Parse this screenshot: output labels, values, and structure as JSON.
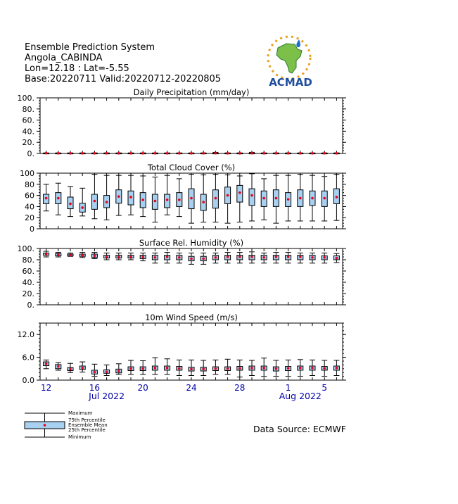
{
  "header": {
    "line1": "Ensemble Prediction System",
    "line2": "Angola_CABINDA",
    "line3": "Lon=12.18 : Lat=-5.55",
    "line4": "Base:20220711 Valid:20220712-20220805"
  },
  "logo": {
    "text": "ACMAD",
    "icon": "africa-map-sun-logo"
  },
  "source": "Data Source: ECMWF",
  "colors": {
    "box": "#a8d0f0",
    "mean": "#e8001c",
    "axis": "#000000",
    "month": "#0000aa"
  },
  "xaxis": {
    "tick_labels": [
      {
        "day": 12,
        "label": "12"
      },
      {
        "day": 16,
        "label": "16"
      },
      {
        "day": 20,
        "label": "20"
      },
      {
        "day": 24,
        "label": "24"
      },
      {
        "day": 28,
        "label": "28"
      },
      {
        "day": 32,
        "label": "1"
      },
      {
        "day": 35,
        "label": "5"
      }
    ],
    "months": [
      {
        "day": 17,
        "label": "Jul 2022"
      },
      {
        "day": 33,
        "label": "Aug 2022"
      }
    ]
  },
  "legend": {
    "maximum": "Maximum",
    "p75": "75th Percentile",
    "mean": "Ensemble Mean",
    "p25": "25th Percentile",
    "minimum": "Minimum"
  },
  "chart_data": [
    {
      "type": "box",
      "title": "Daily Precipitation (mm/day)",
      "ylim": [
        0,
        100
      ],
      "yticks": [
        "0.",
        "20.",
        "40.",
        "60.",
        "80.",
        "100."
      ],
      "x": [
        "2022-07-12",
        "2022-07-13",
        "2022-07-14",
        "2022-07-15",
        "2022-07-16",
        "2022-07-17",
        "2022-07-18",
        "2022-07-19",
        "2022-07-20",
        "2022-07-21",
        "2022-07-22",
        "2022-07-23",
        "2022-07-24",
        "2022-07-25",
        "2022-07-26",
        "2022-07-27",
        "2022-07-28",
        "2022-07-29",
        "2022-07-30",
        "2022-07-31",
        "2022-08-01",
        "2022-08-02",
        "2022-08-03",
        "2022-08-04",
        "2022-08-05"
      ],
      "min": [
        0,
        0,
        0,
        0,
        0,
        0,
        0,
        0,
        0,
        0,
        0,
        0,
        0,
        0,
        0,
        0,
        0,
        0,
        0,
        0,
        0,
        0,
        0,
        0,
        0
      ],
      "p25": [
        0,
        0,
        0,
        0,
        0,
        0,
        0,
        0,
        0,
        0,
        0,
        0,
        0,
        0,
        0,
        0,
        0,
        0,
        0,
        0,
        0,
        0,
        0,
        0,
        0
      ],
      "mean": [
        0.5,
        0.3,
        0.3,
        0.3,
        0.3,
        0.3,
        0.3,
        0.3,
        0.3,
        0.3,
        0.3,
        0.3,
        0.3,
        0.3,
        0.5,
        0.3,
        0.3,
        0.5,
        0.3,
        0.3,
        0.3,
        0.3,
        0.3,
        0.3,
        0.3
      ],
      "p75": [
        0.5,
        0.5,
        0.5,
        0.5,
        0.5,
        0.5,
        0.5,
        0.5,
        0.5,
        0.5,
        0.5,
        0.5,
        0.5,
        0.5,
        0.5,
        0.5,
        0.5,
        0.5,
        0.5,
        0.5,
        0.5,
        0.5,
        0.5,
        0.5,
        0.5
      ],
      "max": [
        1,
        1,
        1,
        1,
        1,
        1,
        1,
        1,
        1,
        1,
        1,
        1,
        1,
        1,
        2,
        1,
        1,
        2,
        1,
        1,
        1,
        1,
        1,
        1,
        1
      ]
    },
    {
      "type": "box",
      "title": "Total Cloud Cover (%)",
      "ylim": [
        0,
        100
      ],
      "yticks": [
        "0",
        "20",
        "40",
        "60",
        "80",
        "100"
      ],
      "min": [
        32,
        25,
        22,
        23,
        18,
        16,
        24,
        25,
        22,
        12,
        25,
        22,
        10,
        12,
        12,
        10,
        12,
        14,
        16,
        10,
        14,
        14,
        14,
        14,
        15
      ],
      "p25": [
        45,
        45,
        36,
        30,
        35,
        38,
        46,
        43,
        38,
        35,
        38,
        40,
        36,
        33,
        37,
        45,
        48,
        42,
        40,
        40,
        40,
        40,
        42,
        40,
        45
      ],
      "mean": [
        55,
        55,
        45,
        38,
        50,
        48,
        58,
        57,
        52,
        50,
        52,
        52,
        55,
        48,
        55,
        60,
        65,
        60,
        55,
        55,
        53,
        55,
        55,
        55,
        57
      ],
      "p75": [
        62,
        65,
        57,
        46,
        62,
        60,
        70,
        68,
        65,
        62,
        62,
        65,
        72,
        62,
        70,
        75,
        78,
        72,
        68,
        70,
        65,
        70,
        68,
        68,
        72
      ],
      "max": [
        80,
        82,
        76,
        73,
        98,
        96,
        96,
        96,
        95,
        93,
        96,
        90,
        98,
        97,
        98,
        97,
        95,
        99,
        90,
        96,
        96,
        98,
        96,
        94,
        98
      ]
    },
    {
      "type": "box",
      "title": "Surface Rel. Humidity (%)",
      "ylim": [
        0,
        100
      ],
      "yticks": [
        "0.",
        "20.",
        "40.",
        "60.",
        "80.",
        "100."
      ],
      "min": [
        85,
        85,
        86,
        84,
        82,
        80,
        80,
        80,
        78,
        74,
        74,
        74,
        72,
        72,
        74,
        74,
        74,
        74,
        74,
        74,
        74,
        74,
        74,
        74,
        75
      ],
      "p25": [
        88,
        87,
        87,
        86,
        84,
        83,
        83,
        83,
        82,
        80,
        80,
        80,
        78,
        78,
        80,
        80,
        80,
        80,
        80,
        80,
        80,
        80,
        80,
        80,
        80
      ],
      "mean": [
        90,
        89,
        88,
        88,
        87,
        85,
        85,
        85,
        85,
        84,
        85,
        84,
        82,
        82,
        84,
        85,
        85,
        85,
        84,
        85,
        85,
        85,
        84,
        84,
        83
      ],
      "p75": [
        92,
        91,
        90,
        90,
        90,
        88,
        88,
        88,
        88,
        88,
        88,
        88,
        86,
        86,
        88,
        88,
        88,
        88,
        88,
        88,
        88,
        88,
        88,
        87,
        87
      ],
      "max": [
        95,
        93,
        92,
        93,
        93,
        92,
        92,
        92,
        92,
        92,
        93,
        92,
        92,
        92,
        92,
        93,
        93,
        94,
        92,
        93,
        93,
        92,
        92,
        92,
        91
      ]
    },
    {
      "type": "box",
      "title": "10m Wind Speed (m/s)",
      "ylim": [
        0,
        15
      ],
      "yticks": [
        "0.0",
        "6.0",
        "12.0"
      ],
      "min": [
        3.0,
        2.6,
        2.0,
        2.1,
        1.0,
        1.2,
        1.5,
        1.5,
        1.5,
        1.5,
        1.5,
        1.2,
        1.2,
        1.2,
        1.5,
        1.5,
        0.8,
        1.2,
        1.0,
        1.0,
        1.0,
        1.0,
        1.2,
        1.0,
        1.2
      ],
      "p25": [
        3.8,
        3.0,
        2.5,
        2.8,
        1.6,
        1.8,
        1.9,
        2.5,
        2.5,
        2.6,
        2.6,
        2.6,
        2.4,
        2.4,
        2.5,
        2.5,
        2.6,
        2.6,
        2.6,
        2.4,
        2.5,
        2.6,
        2.6,
        2.6,
        2.6
      ],
      "mean": [
        4.3,
        3.6,
        2.9,
        3.2,
        2.1,
        2.2,
        2.4,
        3.0,
        3.0,
        3.2,
        3.2,
        3.1,
        2.9,
        2.9,
        3.0,
        3.0,
        3.1,
        3.2,
        3.2,
        3.0,
        3.1,
        3.2,
        3.2,
        3.1,
        3.2
      ],
      "p75": [
        4.8,
        4.1,
        3.3,
        3.7,
        2.6,
        2.7,
        2.9,
        3.5,
        3.5,
        3.7,
        3.7,
        3.6,
        3.4,
        3.4,
        3.5,
        3.5,
        3.6,
        3.7,
        3.7,
        3.5,
        3.6,
        3.7,
        3.7,
        3.6,
        3.7
      ],
      "max": [
        5.3,
        4.6,
        4.4,
        4.8,
        4.2,
        4.0,
        4.3,
        5.2,
        5.1,
        5.9,
        5.6,
        5.3,
        5.3,
        5.2,
        5.3,
        5.5,
        5.3,
        5.2,
        5.8,
        5.2,
        5.3,
        5.4,
        5.3,
        5.2,
        5.2
      ]
    }
  ]
}
